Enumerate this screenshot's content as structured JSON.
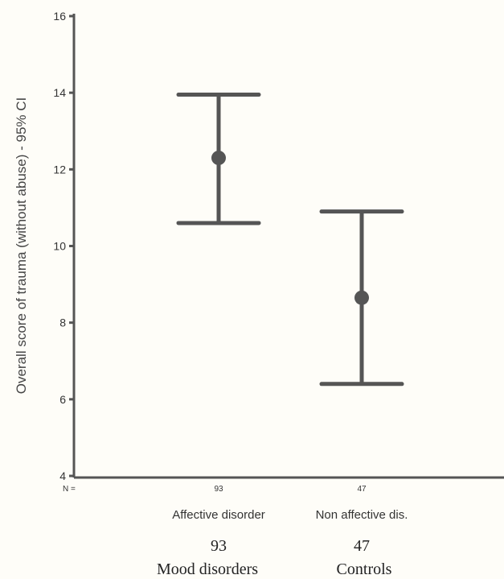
{
  "chart_data": {
    "type": "errorbar",
    "ylabel": "Overall score of trauma (without abuse) - 95% CI",
    "ylim": [
      4,
      16
    ],
    "yticks": [
      4,
      6,
      8,
      10,
      12,
      14,
      16
    ],
    "n_prefix": "N =",
    "categories": [
      "Affective disorder",
      "Non affective dis."
    ],
    "n_values": [
      "93",
      "47"
    ],
    "annotations": {
      "counts": [
        "93",
        "47"
      ],
      "groups": [
        "Mood disorders",
        "Controls"
      ]
    },
    "series": [
      {
        "mean": [
          12.3,
          8.65
        ],
        "ci_low": [
          10.6,
          6.4
        ],
        "ci_high": [
          13.95,
          10.9
        ]
      }
    ],
    "grid": false,
    "colors": {
      "mark": "#555555",
      "axis": "#555555",
      "background": "#fefdf8"
    }
  }
}
